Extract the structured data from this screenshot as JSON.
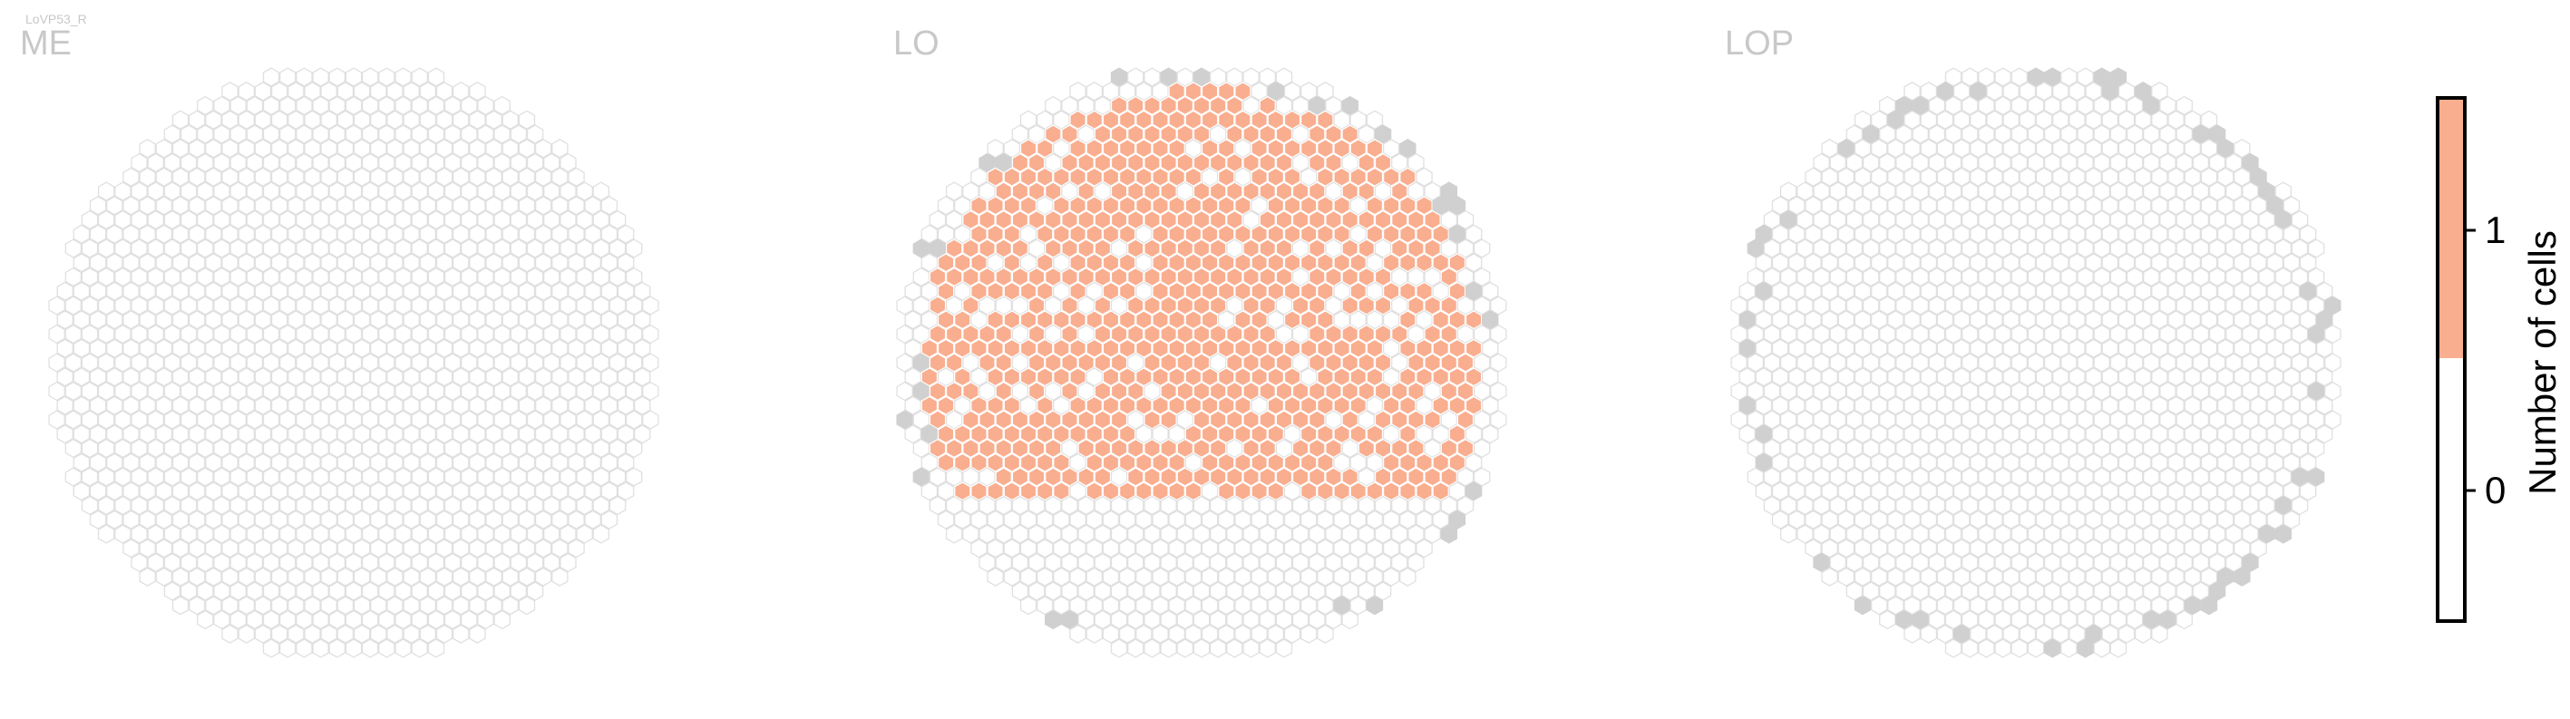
{
  "figure": {
    "cell_type_label": "LoVP53_R"
  },
  "chart_data": {
    "type": "heatmap",
    "cell_type_label": "LoVP53_R",
    "panels": [
      {
        "title": "ME",
        "colored_fraction": 0.0,
        "gray_ring_fraction": 0.0
      },
      {
        "title": "LO",
        "colored_fraction": 0.82,
        "gray_ring_fraction": 0.18
      },
      {
        "title": "LOP",
        "colored_fraction": 0.0,
        "gray_ring_fraction": 0.35
      }
    ],
    "colorbar": {
      "title": "Number of cells",
      "ticks": [
        "0",
        "1"
      ],
      "vlim": [
        -0.5,
        1.5
      ],
      "colors": {
        "zero": "#ffffff",
        "one": "#f9ae8f"
      }
    },
    "colors": {
      "hex_outline": "#e0e0e0",
      "hex_empty": "#ffffff",
      "hex_gray": "#d0d0d0",
      "hex_value": "#f9ae8f",
      "hex_value_stroke": "#ffffff"
    }
  }
}
